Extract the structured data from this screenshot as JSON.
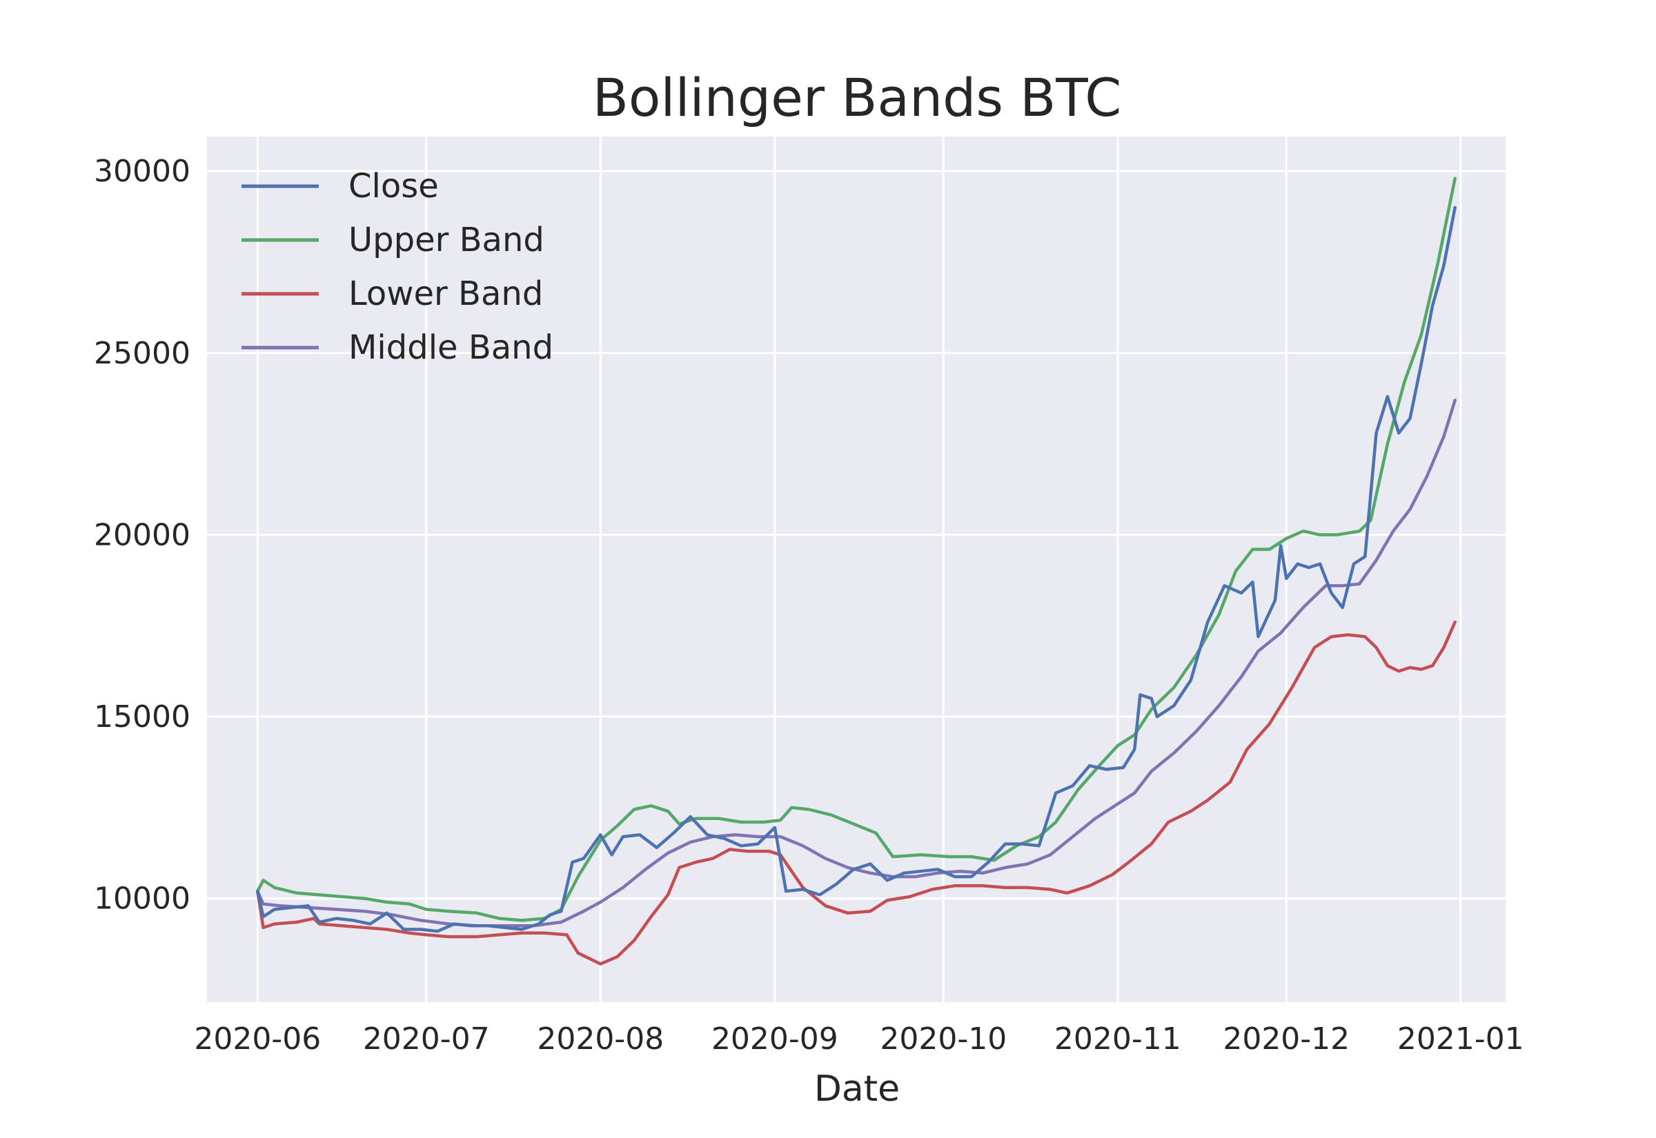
{
  "chart_data": {
    "type": "line",
    "title": "Bollinger Bands BTC",
    "xlabel": "Date",
    "ylabel": "",
    "x_start": "2020-06-01",
    "x_end": "2020-12-31",
    "xlim": [
      "2020-05-23",
      "2021-01-09"
    ],
    "ylim": [
      7150,
      30950
    ],
    "x_ticks": [
      "2020-06",
      "2020-07",
      "2020-08",
      "2020-09",
      "2020-10",
      "2020-11",
      "2020-12",
      "2021-01"
    ],
    "y_ticks": [
      "10000",
      "15000",
      "20000",
      "25000",
      "30000"
    ],
    "y_tick_values": [
      10000,
      15000,
      20000,
      25000,
      30000
    ],
    "grid": true,
    "legend_position": "top-left",
    "colors": {
      "background": "#EAEAF2",
      "grid": "#FFFFFF",
      "text": "#262626"
    },
    "series": [
      {
        "name": "Close",
        "color": "#4C72B0",
        "points": [
          [
            "2020-06-01",
            10200
          ],
          [
            "2020-06-02",
            9500
          ],
          [
            "2020-06-04",
            9700
          ],
          [
            "2020-06-07",
            9750
          ],
          [
            "2020-06-10",
            9800
          ],
          [
            "2020-06-12",
            9350
          ],
          [
            "2020-06-15",
            9450
          ],
          [
            "2020-06-18",
            9400
          ],
          [
            "2020-06-21",
            9300
          ],
          [
            "2020-06-24",
            9600
          ],
          [
            "2020-06-27",
            9150
          ],
          [
            "2020-06-30",
            9150
          ],
          [
            "2020-07-03",
            9100
          ],
          [
            "2020-07-06",
            9300
          ],
          [
            "2020-07-09",
            9250
          ],
          [
            "2020-07-12",
            9250
          ],
          [
            "2020-07-15",
            9200
          ],
          [
            "2020-07-18",
            9150
          ],
          [
            "2020-07-21",
            9300
          ],
          [
            "2020-07-23",
            9550
          ],
          [
            "2020-07-25",
            9650
          ],
          [
            "2020-07-27",
            11000
          ],
          [
            "2020-07-29",
            11100
          ],
          [
            "2020-08-01",
            11750
          ],
          [
            "2020-08-03",
            11200
          ],
          [
            "2020-08-05",
            11700
          ],
          [
            "2020-08-08",
            11750
          ],
          [
            "2020-08-11",
            11400
          ],
          [
            "2020-08-14",
            11800
          ],
          [
            "2020-08-17",
            12250
          ],
          [
            "2020-08-20",
            11750
          ],
          [
            "2020-08-23",
            11650
          ],
          [
            "2020-08-26",
            11450
          ],
          [
            "2020-08-29",
            11500
          ],
          [
            "2020-09-01",
            11950
          ],
          [
            "2020-09-03",
            10200
          ],
          [
            "2020-09-06",
            10250
          ],
          [
            "2020-09-09",
            10100
          ],
          [
            "2020-09-12",
            10400
          ],
          [
            "2020-09-15",
            10800
          ],
          [
            "2020-09-18",
            10950
          ],
          [
            "2020-09-21",
            10500
          ],
          [
            "2020-09-24",
            10700
          ],
          [
            "2020-09-27",
            10750
          ],
          [
            "2020-09-30",
            10800
          ],
          [
            "2020-10-03",
            10600
          ],
          [
            "2020-10-06",
            10600
          ],
          [
            "2020-10-09",
            11000
          ],
          [
            "2020-10-12",
            11500
          ],
          [
            "2020-10-15",
            11500
          ],
          [
            "2020-10-18",
            11450
          ],
          [
            "2020-10-21",
            12900
          ],
          [
            "2020-10-24",
            13100
          ],
          [
            "2020-10-27",
            13650
          ],
          [
            "2020-10-30",
            13550
          ],
          [
            "2020-11-02",
            13600
          ],
          [
            "2020-11-04",
            14100
          ],
          [
            "2020-11-05",
            15600
          ],
          [
            "2020-11-07",
            15500
          ],
          [
            "2020-11-08",
            15000
          ],
          [
            "2020-11-11",
            15300
          ],
          [
            "2020-11-14",
            16000
          ],
          [
            "2020-11-17",
            17600
          ],
          [
            "2020-11-20",
            18600
          ],
          [
            "2020-11-23",
            18400
          ],
          [
            "2020-11-25",
            18700
          ],
          [
            "2020-11-26",
            17200
          ],
          [
            "2020-11-29",
            18200
          ],
          [
            "2020-11-30",
            19700
          ],
          [
            "2020-12-01",
            18800
          ],
          [
            "2020-12-03",
            19200
          ],
          [
            "2020-12-05",
            19100
          ],
          [
            "2020-12-07",
            19200
          ],
          [
            "2020-12-09",
            18400
          ],
          [
            "2020-12-11",
            18000
          ],
          [
            "2020-12-13",
            19200
          ],
          [
            "2020-12-15",
            19400
          ],
          [
            "2020-12-17",
            22800
          ],
          [
            "2020-12-19",
            23800
          ],
          [
            "2020-12-21",
            22800
          ],
          [
            "2020-12-23",
            23200
          ],
          [
            "2020-12-25",
            24700
          ],
          [
            "2020-12-27",
            26300
          ],
          [
            "2020-12-29",
            27400
          ],
          [
            "2020-12-31",
            29000
          ]
        ]
      },
      {
        "name": "Upper Band",
        "color": "#55A868",
        "points": [
          [
            "2020-06-01",
            10200
          ],
          [
            "2020-06-02",
            10500
          ],
          [
            "2020-06-04",
            10300
          ],
          [
            "2020-06-08",
            10150
          ],
          [
            "2020-06-12",
            10100
          ],
          [
            "2020-06-16",
            10050
          ],
          [
            "2020-06-20",
            10000
          ],
          [
            "2020-06-24",
            9900
          ],
          [
            "2020-06-28",
            9850
          ],
          [
            "2020-07-01",
            9700
          ],
          [
            "2020-07-05",
            9650
          ],
          [
            "2020-07-10",
            9600
          ],
          [
            "2020-07-14",
            9450
          ],
          [
            "2020-07-18",
            9400
          ],
          [
            "2020-07-22",
            9450
          ],
          [
            "2020-07-25",
            9700
          ],
          [
            "2020-07-28",
            10600
          ],
          [
            "2020-08-01",
            11600
          ],
          [
            "2020-08-04",
            12000
          ],
          [
            "2020-08-07",
            12450
          ],
          [
            "2020-08-10",
            12550
          ],
          [
            "2020-08-13",
            12400
          ],
          [
            "2020-08-15",
            12050
          ],
          [
            "2020-08-18",
            12200
          ],
          [
            "2020-08-22",
            12200
          ],
          [
            "2020-08-26",
            12100
          ],
          [
            "2020-08-30",
            12100
          ],
          [
            "2020-09-02",
            12150
          ],
          [
            "2020-09-04",
            12500
          ],
          [
            "2020-09-07",
            12450
          ],
          [
            "2020-09-11",
            12300
          ],
          [
            "2020-09-15",
            12050
          ],
          [
            "2020-09-19",
            11800
          ],
          [
            "2020-09-22",
            11150
          ],
          [
            "2020-09-27",
            11200
          ],
          [
            "2020-10-02",
            11150
          ],
          [
            "2020-10-06",
            11150
          ],
          [
            "2020-10-10",
            11050
          ],
          [
            "2020-10-14",
            11450
          ],
          [
            "2020-10-18",
            11700
          ],
          [
            "2020-10-21",
            12100
          ],
          [
            "2020-10-25",
            13000
          ],
          [
            "2020-10-29",
            13700
          ],
          [
            "2020-11-01",
            14200
          ],
          [
            "2020-11-04",
            14500
          ],
          [
            "2020-11-07",
            15200
          ],
          [
            "2020-11-11",
            15800
          ],
          [
            "2020-11-15",
            16700
          ],
          [
            "2020-11-19",
            17800
          ],
          [
            "2020-11-22",
            19000
          ],
          [
            "2020-11-25",
            19600
          ],
          [
            "2020-11-28",
            19600
          ],
          [
            "2020-12-01",
            19900
          ],
          [
            "2020-12-04",
            20100
          ],
          [
            "2020-12-07",
            20000
          ],
          [
            "2020-12-10",
            20000
          ],
          [
            "2020-12-14",
            20100
          ],
          [
            "2020-12-16",
            20400
          ],
          [
            "2020-12-19",
            22500
          ],
          [
            "2020-12-22",
            24200
          ],
          [
            "2020-12-25",
            25500
          ],
          [
            "2020-12-28",
            27500
          ],
          [
            "2020-12-31",
            29800
          ]
        ]
      },
      {
        "name": "Lower Band",
        "color": "#C44E52",
        "points": [
          [
            "2020-06-01",
            10200
          ],
          [
            "2020-06-02",
            9200
          ],
          [
            "2020-06-04",
            9300
          ],
          [
            "2020-06-08",
            9350
          ],
          [
            "2020-06-11",
            9450
          ],
          [
            "2020-06-12",
            9300
          ],
          [
            "2020-06-16",
            9250
          ],
          [
            "2020-06-20",
            9200
          ],
          [
            "2020-06-24",
            9150
          ],
          [
            "2020-06-28",
            9050
          ],
          [
            "2020-07-01",
            9000
          ],
          [
            "2020-07-05",
            8950
          ],
          [
            "2020-07-10",
            8950
          ],
          [
            "2020-07-14",
            9000
          ],
          [
            "2020-07-18",
            9050
          ],
          [
            "2020-07-22",
            9050
          ],
          [
            "2020-07-26",
            9000
          ],
          [
            "2020-07-28",
            8500
          ],
          [
            "2020-08-01",
            8200
          ],
          [
            "2020-08-04",
            8400
          ],
          [
            "2020-08-07",
            8850
          ],
          [
            "2020-08-10",
            9500
          ],
          [
            "2020-08-13",
            10100
          ],
          [
            "2020-08-15",
            10850
          ],
          [
            "2020-08-18",
            11000
          ],
          [
            "2020-08-21",
            11100
          ],
          [
            "2020-08-24",
            11350
          ],
          [
            "2020-08-27",
            11300
          ],
          [
            "2020-08-31",
            11300
          ],
          [
            "2020-09-02",
            11200
          ],
          [
            "2020-09-06",
            10300
          ],
          [
            "2020-09-10",
            9800
          ],
          [
            "2020-09-14",
            9600
          ],
          [
            "2020-09-18",
            9650
          ],
          [
            "2020-09-21",
            9950
          ],
          [
            "2020-09-25",
            10050
          ],
          [
            "2020-09-29",
            10250
          ],
          [
            "2020-10-03",
            10350
          ],
          [
            "2020-10-08",
            10350
          ],
          [
            "2020-10-12",
            10300
          ],
          [
            "2020-10-16",
            10300
          ],
          [
            "2020-10-20",
            10250
          ],
          [
            "2020-10-23",
            10150
          ],
          [
            "2020-10-27",
            10350
          ],
          [
            "2020-10-31",
            10650
          ],
          [
            "2020-11-03",
            11000
          ],
          [
            "2020-11-07",
            11500
          ],
          [
            "2020-11-10",
            12100
          ],
          [
            "2020-11-14",
            12400
          ],
          [
            "2020-11-17",
            12700
          ],
          [
            "2020-11-21",
            13200
          ],
          [
            "2020-11-24",
            14100
          ],
          [
            "2020-11-28",
            14800
          ],
          [
            "2020-12-02",
            15800
          ],
          [
            "2020-12-06",
            16900
          ],
          [
            "2020-12-09",
            17200
          ],
          [
            "2020-12-12",
            17250
          ],
          [
            "2020-12-15",
            17200
          ],
          [
            "2020-12-17",
            16900
          ],
          [
            "2020-12-19",
            16400
          ],
          [
            "2020-12-21",
            16250
          ],
          [
            "2020-12-23",
            16350
          ],
          [
            "2020-12-25",
            16300
          ],
          [
            "2020-12-27",
            16400
          ],
          [
            "2020-12-29",
            16900
          ],
          [
            "2020-12-31",
            17600
          ]
        ]
      },
      {
        "name": "Middle Band",
        "color": "#8172B2",
        "points": [
          [
            "2020-06-01",
            10200
          ],
          [
            "2020-06-02",
            9850
          ],
          [
            "2020-06-05",
            9800
          ],
          [
            "2020-06-10",
            9750
          ],
          [
            "2020-06-15",
            9700
          ],
          [
            "2020-06-20",
            9650
          ],
          [
            "2020-06-25",
            9550
          ],
          [
            "2020-06-30",
            9400
          ],
          [
            "2020-07-05",
            9300
          ],
          [
            "2020-07-10",
            9250
          ],
          [
            "2020-07-15",
            9250
          ],
          [
            "2020-07-20",
            9250
          ],
          [
            "2020-07-25",
            9350
          ],
          [
            "2020-07-29",
            9650
          ],
          [
            "2020-08-01",
            9900
          ],
          [
            "2020-08-05",
            10300
          ],
          [
            "2020-08-09",
            10800
          ],
          [
            "2020-08-13",
            11250
          ],
          [
            "2020-08-17",
            11550
          ],
          [
            "2020-08-21",
            11700
          ],
          [
            "2020-08-25",
            11750
          ],
          [
            "2020-08-29",
            11700
          ],
          [
            "2020-09-02",
            11700
          ],
          [
            "2020-09-06",
            11450
          ],
          [
            "2020-09-10",
            11100
          ],
          [
            "2020-09-14",
            10850
          ],
          [
            "2020-09-18",
            10700
          ],
          [
            "2020-09-22",
            10600
          ],
          [
            "2020-09-26",
            10600
          ],
          [
            "2020-09-30",
            10700
          ],
          [
            "2020-10-04",
            10750
          ],
          [
            "2020-10-08",
            10700
          ],
          [
            "2020-10-12",
            10850
          ],
          [
            "2020-10-16",
            10950
          ],
          [
            "2020-10-20",
            11200
          ],
          [
            "2020-10-24",
            11700
          ],
          [
            "2020-10-28",
            12200
          ],
          [
            "2020-11-01",
            12600
          ],
          [
            "2020-11-04",
            12900
          ],
          [
            "2020-11-07",
            13500
          ],
          [
            "2020-11-11",
            14000
          ],
          [
            "2020-11-15",
            14600
          ],
          [
            "2020-11-19",
            15300
          ],
          [
            "2020-11-23",
            16100
          ],
          [
            "2020-11-26",
            16800
          ],
          [
            "2020-11-30",
            17300
          ],
          [
            "2020-12-04",
            18000
          ],
          [
            "2020-12-08",
            18600
          ],
          [
            "2020-12-11",
            18600
          ],
          [
            "2020-12-14",
            18650
          ],
          [
            "2020-12-17",
            19300
          ],
          [
            "2020-12-20",
            20100
          ],
          [
            "2020-12-23",
            20700
          ],
          [
            "2020-12-26",
            21600
          ],
          [
            "2020-12-29",
            22700
          ],
          [
            "2020-12-31",
            23700
          ]
        ]
      }
    ]
  }
}
